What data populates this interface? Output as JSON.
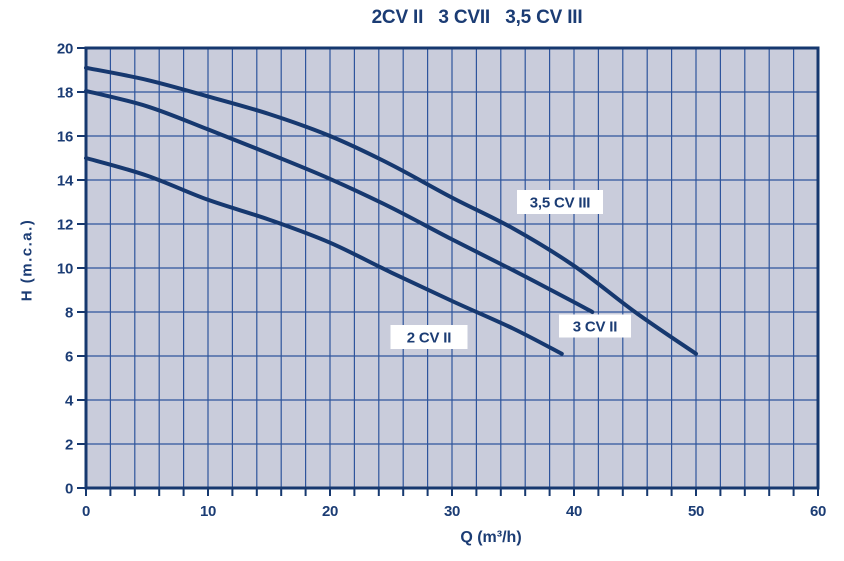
{
  "chart_data": {
    "type": "line",
    "title": "2CV II   3 CVII   3,5 CV III",
    "xlabel": "Q (m³/h)",
    "ylabel": "H (m.c.a.)",
    "xlim": [
      0,
      60
    ],
    "ylim": [
      0,
      20
    ],
    "grid": true,
    "grid_step_x": 2,
    "grid_step_y": 2,
    "x_tick_step": 2,
    "x_tick_label_step": 10,
    "y_tick_step": 2,
    "y_tick_label_step": 2,
    "legend_position": "inline-labels",
    "colors": {
      "curve": "#16386f",
      "border": "#16386f",
      "grid": "#2e549c",
      "plot_background": "#c9ccdb",
      "text": "#1b3c74",
      "label_box_background": "#ffffff"
    },
    "series": [
      {
        "name": "3,5 CV III",
        "points": [
          [
            0,
            19.1
          ],
          [
            5,
            18.55
          ],
          [
            10,
            17.8
          ],
          [
            15,
            17.0
          ],
          [
            20,
            16.0
          ],
          [
            25,
            14.7
          ],
          [
            30,
            13.2
          ],
          [
            35,
            11.8
          ],
          [
            40,
            10.1
          ],
          [
            45,
            8.0
          ],
          [
            50,
            6.1
          ]
        ],
        "label_box": {
          "text": "3,5 CV III",
          "cx": 560,
          "cy": 202,
          "w": 86,
          "h": 24
        }
      },
      {
        "name": "3 CV II",
        "points": [
          [
            0,
            18.05
          ],
          [
            5,
            17.35
          ],
          [
            10,
            16.3
          ],
          [
            15,
            15.2
          ],
          [
            20,
            14.05
          ],
          [
            25,
            12.75
          ],
          [
            30,
            11.3
          ],
          [
            35,
            9.9
          ],
          [
            40,
            8.45
          ],
          [
            41.5,
            8.0
          ]
        ],
        "label_box": {
          "text": "3 CV II",
          "cx": 595,
          "cy": 326,
          "w": 72,
          "h": 23
        }
      },
      {
        "name": "2 CV II",
        "points": [
          [
            0,
            15.0
          ],
          [
            5,
            14.2
          ],
          [
            10,
            13.1
          ],
          [
            15,
            12.2
          ],
          [
            20,
            11.15
          ],
          [
            25,
            9.8
          ],
          [
            30,
            8.5
          ],
          [
            35,
            7.25
          ],
          [
            39,
            6.1
          ]
        ],
        "label_box": {
          "text": "2 CV II",
          "cx": 429,
          "cy": 337,
          "w": 77,
          "h": 24
        }
      }
    ]
  }
}
